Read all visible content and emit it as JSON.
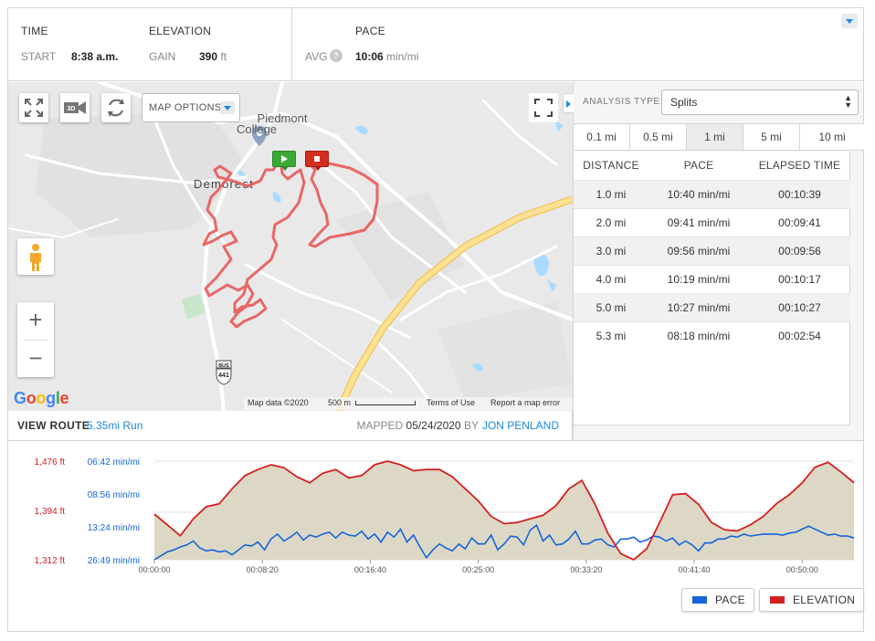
{
  "stats": {
    "time": {
      "title": "TIME",
      "label": "START",
      "value": "8:38 a.m."
    },
    "elevation": {
      "title": "ELEVATION",
      "label": "GAIN",
      "value": "390",
      "unit": "ft"
    },
    "pace": {
      "title": "PACE",
      "label": "AVG",
      "help": "?",
      "value": "10:06",
      "unit": "min/mi"
    }
  },
  "map": {
    "options_label": "MAP OPTIONS",
    "btn_3d_label": "3D",
    "place_college": "Piedmont",
    "place_college_2": "College",
    "place_town": "Demorest",
    "shield_top": "BUS",
    "shield_num": "441",
    "google": [
      "G",
      "o",
      "o",
      "g",
      "l",
      "e"
    ],
    "google_colors": [
      "#4285f4",
      "#ea4335",
      "#fbbc05",
      "#4285f4",
      "#34a853",
      "#ea4335"
    ],
    "attribution": "Map data ©2020",
    "scale_label": "500 m",
    "terms": "Terms of Use",
    "report": "Report a map error",
    "zoom_in": "+",
    "zoom_out": "−"
  },
  "route": {
    "view_route": "VIEW ROUTE",
    "run_label": "5.35mi Run",
    "mapped_prefix": "MAPPED",
    "mapped_date": "05/24/2020",
    "by": "BY",
    "author": "JON PENLAND"
  },
  "analysis": {
    "type_label": "ANALYSIS TYPE:",
    "type_value": "Splits",
    "segments": [
      "0.1 mi",
      "0.5 mi",
      "1 mi",
      "5 mi",
      "10 mi"
    ],
    "active_segment": "1 mi",
    "headers": [
      "DISTANCE",
      "PACE",
      "ELAPSED TIME"
    ],
    "rows": [
      [
        "1.0 mi",
        "10:40 min/mi",
        "00:10:39"
      ],
      [
        "2.0 mi",
        "09:41 min/mi",
        "00:09:41"
      ],
      [
        "3.0 mi",
        "09:56 min/mi",
        "00:09:56"
      ],
      [
        "4.0 mi",
        "10:19 min/mi",
        "00:10:17"
      ],
      [
        "5.0 mi",
        "10:27 min/mi",
        "00:10:27"
      ],
      [
        "5.3 mi",
        "08:18 min/mi",
        "00:02:54"
      ]
    ]
  },
  "chart_data": {
    "type": "line",
    "x_ticks": [
      "00:00:00",
      "00:08:20",
      "00:16:40",
      "00:25:00",
      "00:33:20",
      "00:41:40",
      "00:50:00"
    ],
    "x_tick_seconds": [
      0,
      500,
      1000,
      1500,
      2000,
      2500,
      3000
    ],
    "x_range_seconds": [
      0,
      3240
    ],
    "elevation_ticks": [
      "1,476 ft",
      "1,394 ft",
      "1,312 ft"
    ],
    "elevation_tick_values": [
      1476,
      1394,
      1312
    ],
    "pace_ticks": [
      "06:42 min/mi",
      "08:56 min/mi",
      "13:24 min/mi",
      "26:49 min/mi"
    ],
    "colors": {
      "pace": "#1565d8",
      "elevation": "#d42020",
      "fill": "#ddd8c6"
    },
    "series": [
      {
        "name": "PACE",
        "x": [
          0,
          30,
          60,
          90,
          120,
          150,
          180,
          210,
          240,
          270,
          300,
          330,
          360,
          390,
          420,
          450,
          480,
          510,
          540,
          570,
          600,
          630,
          660,
          690,
          720,
          750,
          780,
          810,
          840,
          870,
          900,
          930,
          960,
          990,
          1020,
          1050,
          1080,
          1110,
          1140,
          1170,
          1200,
          1230,
          1260,
          1290,
          1320,
          1350,
          1380,
          1410,
          1440,
          1470,
          1500,
          1530,
          1560,
          1590,
          1620,
          1650,
          1680,
          1710,
          1740,
          1770,
          1800,
          1830,
          1860,
          1890,
          1920,
          1950,
          1980,
          2010,
          2040,
          2070,
          2100,
          2130,
          2160,
          2190,
          2220,
          2250,
          2280,
          2310,
          2340,
          2370,
          2400,
          2430,
          2460,
          2490,
          2520,
          2550,
          2580,
          2610,
          2640,
          2670,
          2700,
          2730,
          2760,
          2790,
          2820,
          2850,
          2880,
          2910,
          2940,
          2970,
          3000,
          3030,
          3060,
          3090,
          3120,
          3150,
          3180,
          3210,
          3240
        ],
        "level": [
          0.0,
          0.04,
          0.08,
          0.1,
          0.13,
          0.15,
          0.19,
          0.12,
          0.09,
          0.1,
          0.08,
          0.09,
          0.05,
          0.1,
          0.15,
          0.14,
          0.18,
          0.1,
          0.21,
          0.26,
          0.19,
          0.23,
          0.28,
          0.2,
          0.25,
          0.23,
          0.26,
          0.28,
          0.22,
          0.28,
          0.25,
          0.24,
          0.29,
          0.21,
          0.26,
          0.18,
          0.28,
          0.23,
          0.31,
          0.18,
          0.25,
          0.13,
          0.02,
          0.1,
          0.16,
          0.12,
          0.09,
          0.16,
          0.11,
          0.22,
          0.16,
          0.16,
          0.25,
          0.1,
          0.16,
          0.24,
          0.23,
          0.15,
          0.3,
          0.35,
          0.19,
          0.25,
          0.15,
          0.16,
          0.21,
          0.29,
          0.16,
          0.16,
          0.2,
          0.21,
          0.15,
          0.13,
          0.21,
          0.21,
          0.23,
          0.18,
          0.2,
          0.24,
          0.23,
          0.19,
          0.22,
          0.15,
          0.19,
          0.15,
          0.09,
          0.17,
          0.17,
          0.21,
          0.21,
          0.24,
          0.23,
          0.26,
          0.24,
          0.25,
          0.26,
          0.26,
          0.26,
          0.25,
          0.27,
          0.28,
          0.31,
          0.34,
          0.31,
          0.28,
          0.25,
          0.26,
          0.24,
          0.24,
          0.22
        ]
      },
      {
        "name": "ELEVATION",
        "x": [
          0,
          60,
          120,
          180,
          240,
          300,
          360,
          420,
          480,
          540,
          600,
          660,
          720,
          780,
          840,
          900,
          960,
          1020,
          1080,
          1140,
          1200,
          1260,
          1320,
          1380,
          1440,
          1500,
          1560,
          1620,
          1680,
          1740,
          1800,
          1860,
          1920,
          1980,
          2040,
          2100,
          2160,
          2220,
          2280,
          2340,
          2400,
          2460,
          2520,
          2580,
          2640,
          2700,
          2760,
          2820,
          2880,
          2940,
          3000,
          3060,
          3120,
          3180,
          3240
        ],
        "values": [
          1388,
          1370,
          1352,
          1380,
          1400,
          1405,
          1430,
          1452,
          1462,
          1470,
          1465,
          1450,
          1440,
          1456,
          1462,
          1448,
          1452,
          1470,
          1476,
          1470,
          1460,
          1462,
          1462,
          1450,
          1430,
          1410,
          1384,
          1372,
          1374,
          1380,
          1386,
          1402,
          1430,
          1444,
          1405,
          1356,
          1322,
          1312,
          1330,
          1374,
          1420,
          1422,
          1404,
          1374,
          1362,
          1360,
          1370,
          1384,
          1405,
          1420,
          1440,
          1466,
          1474,
          1458,
          1440
        ]
      }
    ]
  }
}
